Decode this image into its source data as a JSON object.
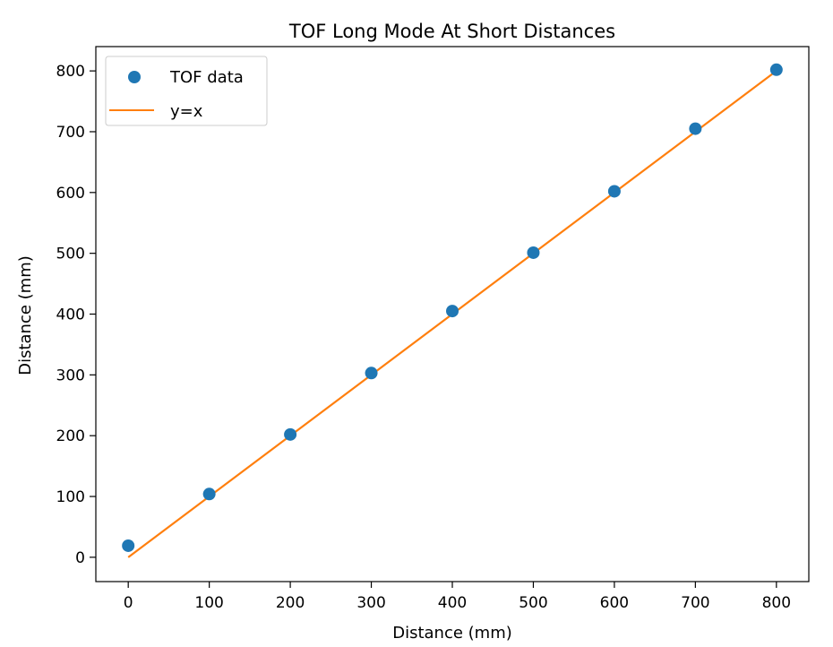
{
  "chart_data": {
    "type": "scatter",
    "title": "TOF Long Mode At Short Distances",
    "xlabel": "Distance (mm)",
    "ylabel": "Distance (mm)",
    "xlim": [
      -40,
      840
    ],
    "ylim": [
      -40,
      840
    ],
    "xticks": [
      0,
      100,
      200,
      300,
      400,
      500,
      600,
      700,
      800
    ],
    "yticks": [
      0,
      100,
      200,
      300,
      400,
      500,
      600,
      700,
      800
    ],
    "grid": false,
    "legend_position": "top-left",
    "series": [
      {
        "name": "TOF data",
        "kind": "scatter",
        "color": "#1f77b4",
        "points": [
          {
            "x": 0,
            "y": 19
          },
          {
            "x": 100,
            "y": 104
          },
          {
            "x": 200,
            "y": 202
          },
          {
            "x": 300,
            "y": 303
          },
          {
            "x": 400,
            "y": 405
          },
          {
            "x": 500,
            "y": 501
          },
          {
            "x": 600,
            "y": 602
          },
          {
            "x": 700,
            "y": 705
          },
          {
            "x": 800,
            "y": 802
          }
        ]
      },
      {
        "name": "y=x",
        "kind": "line",
        "color": "#ff7f0e",
        "points": [
          {
            "x": 0,
            "y": 0
          },
          {
            "x": 800,
            "y": 800
          }
        ]
      }
    ]
  }
}
